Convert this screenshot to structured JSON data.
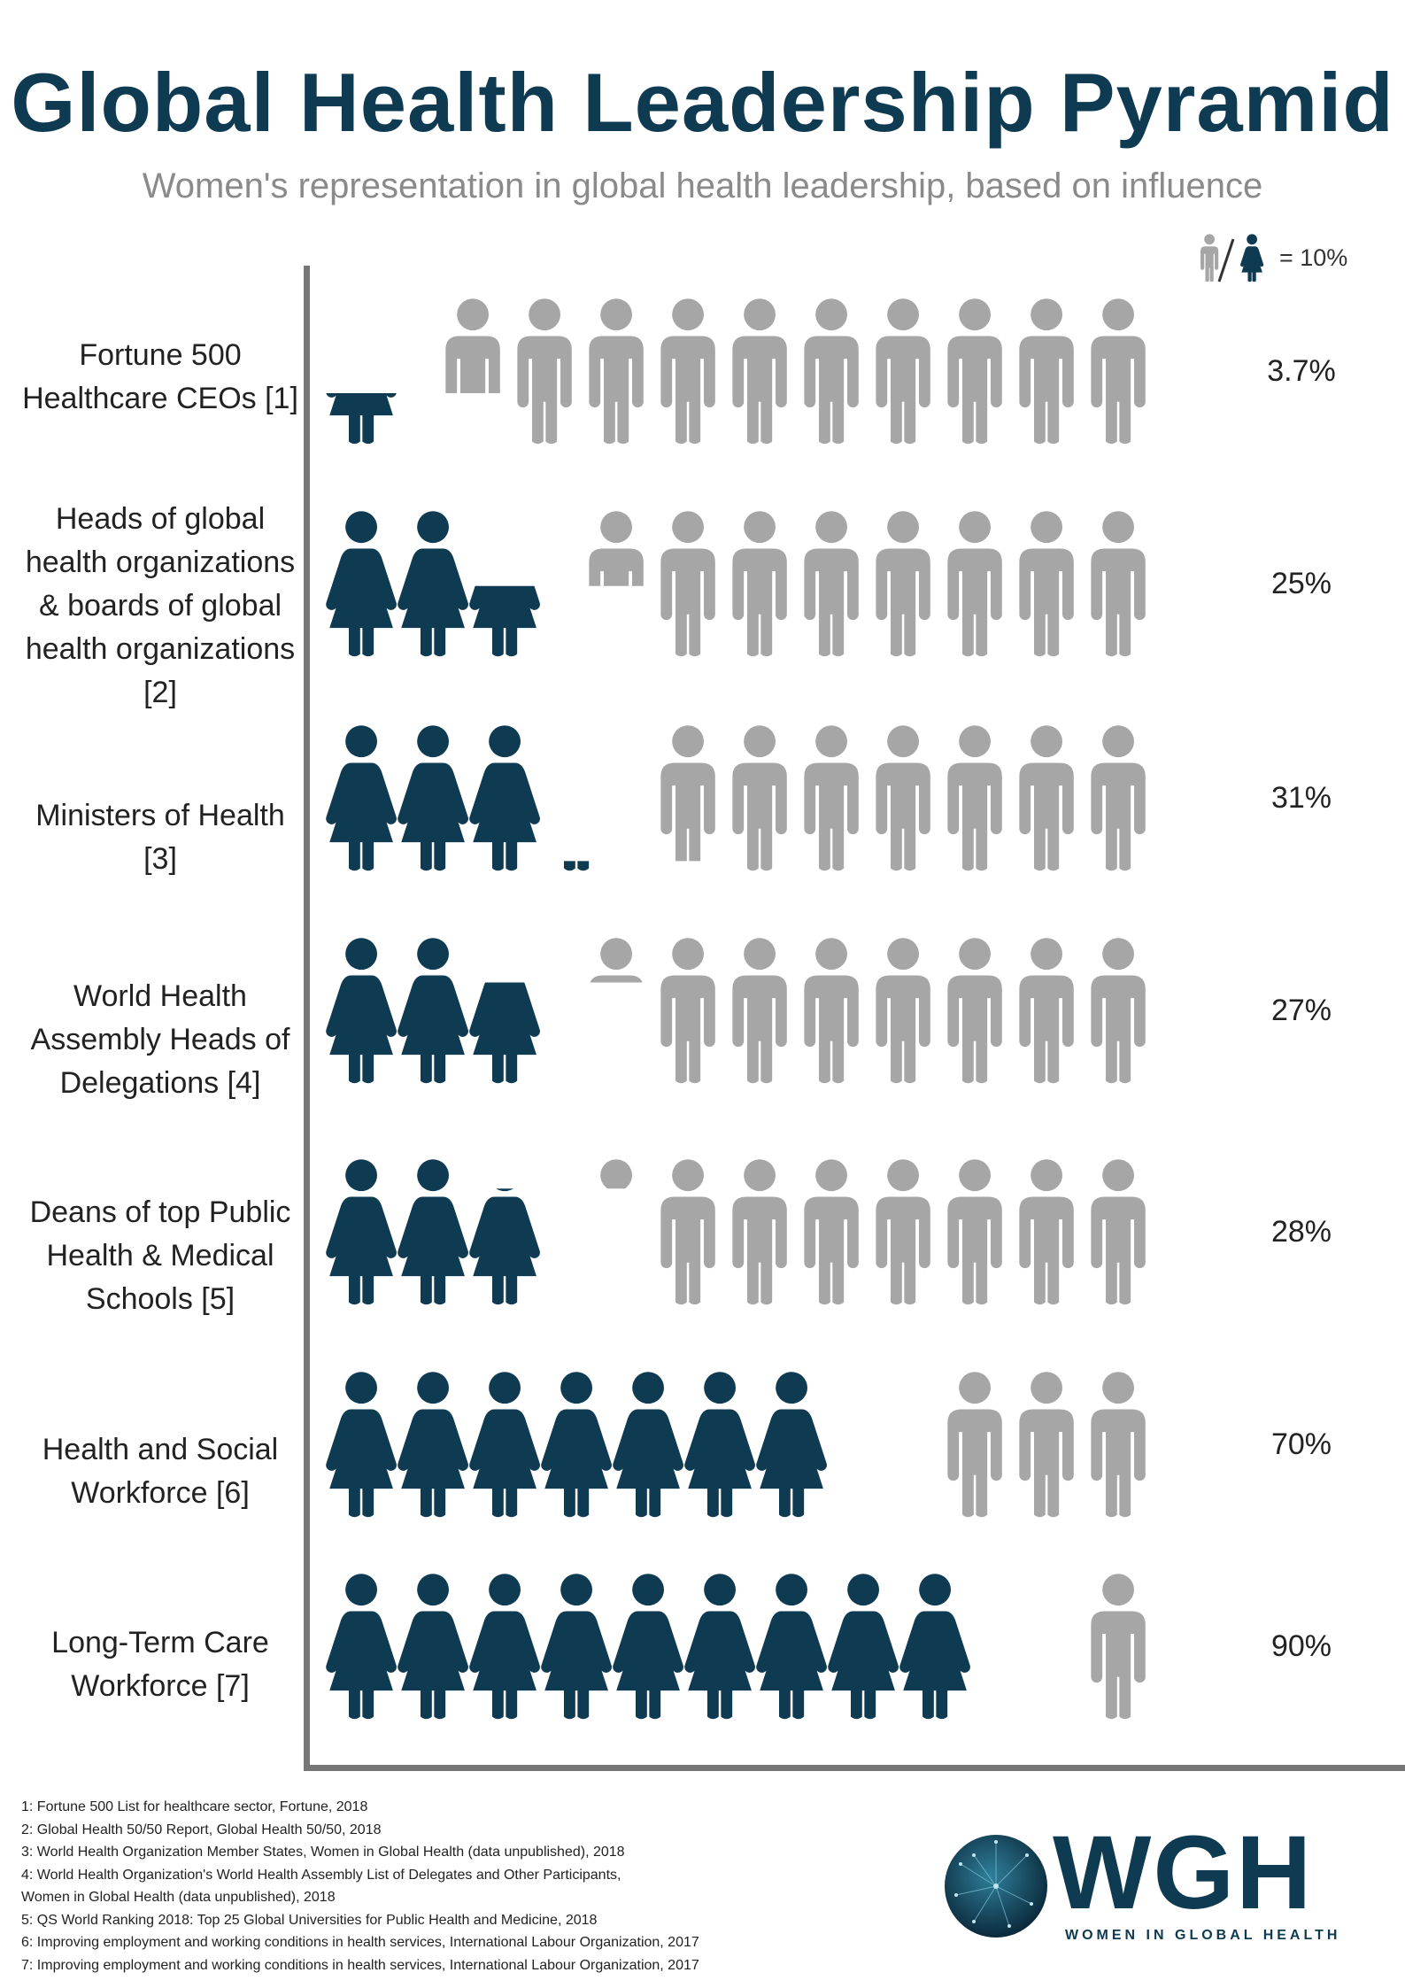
{
  "title": "Global Health Leadership Pyramid",
  "subtitle": "Women's representation in global health leadership, based on influence",
  "legend": {
    "label": "= 10%"
  },
  "colors": {
    "female": "#0e3a52",
    "male": "#a6a6a6",
    "axis": "#777777",
    "title": "#0e3a52"
  },
  "chart_data": {
    "type": "pictograph",
    "unit": "10%",
    "title": "Global Health Leadership Pyramid",
    "series": [
      {
        "name": "Women",
        "color": "#0e3a52"
      },
      {
        "name": "Men",
        "color": "#a6a6a6"
      }
    ],
    "categories": [
      {
        "label": [
          "Fortune 500",
          "Healthcare CEOs [1]"
        ],
        "women_pct": 3.7,
        "display": "3.7%"
      },
      {
        "label": [
          "Heads of global",
          "health organizations",
          "& boards of global",
          "health organizations",
          "[2]"
        ],
        "women_pct": 25,
        "display": "25%"
      },
      {
        "label": [
          "Ministers of Health",
          "[3]"
        ],
        "women_pct": 31,
        "display": "31%"
      },
      {
        "label": [
          "World Health",
          "Assembly Heads of",
          "Delegations [4]"
        ],
        "women_pct": 27,
        "display": "27%"
      },
      {
        "label": [
          "Deans of top Public",
          "Health & Medical",
          "Schools [5]"
        ],
        "women_pct": 28,
        "display": "28%"
      },
      {
        "label": [
          "Health and Social",
          "Workforce [6]"
        ],
        "women_pct": 70,
        "display": "70%"
      },
      {
        "label": [
          "Long-Term Care",
          "Workforce [7]"
        ],
        "women_pct": 90,
        "display": "90%"
      }
    ]
  },
  "footnotes": [
    "1: Fortune 500 List for healthcare sector, Fortune, 2018",
    "2: Global Health 50/50 Report, Global Health 50/50, 2018",
    "3: World Health Organization Member States, Women in Global Health (data unpublished), 2018",
    "4: World Health Organization's World Health Assembly List of Delegates and Other Participants,",
    "Women in Global Health (data unpublished), 2018",
    "5: QS World Ranking 2018: Top 25 Global Universities for Public Health and Medicine, 2018",
    "6: Improving employment and working conditions in health services, International Labour Organization, 2017",
    "7: Improving employment and working conditions in health services, International Labour Organization, 2017"
  ],
  "logo": {
    "text": "WGH",
    "subtext": "WOMEN IN GLOBAL HEALTH"
  }
}
